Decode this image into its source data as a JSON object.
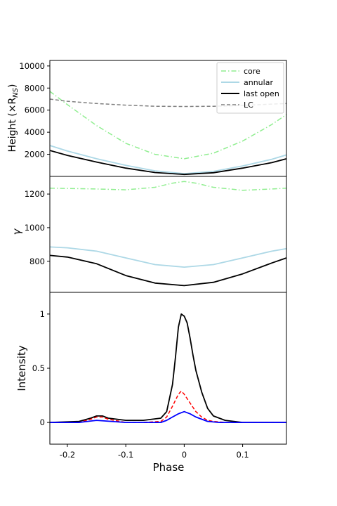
{
  "chart_data": [
    {
      "type": "line",
      "ylabel": "Height (×R",
      "ylabel_sub": "NS",
      "ylabel_tail": ")",
      "xlim": [
        -0.23,
        0.175
      ],
      "ylim": [
        0,
        10500
      ],
      "yticks": [
        2000,
        4000,
        6000,
        8000,
        10000
      ],
      "ytick_labels": [
        "2000",
        "4000",
        "6000",
        "8000",
        "10000"
      ],
      "legend_position": "upper-right",
      "series": [
        {
          "name": "core",
          "color": "#90ee90",
          "style": "dashdot",
          "x": [
            -0.23,
            -0.2,
            -0.15,
            -0.1,
            -0.05,
            0.0,
            0.05,
            0.1,
            0.15,
            0.175
          ],
          "y": [
            7700,
            6500,
            4600,
            3000,
            2000,
            1600,
            2100,
            3200,
            4700,
            5600
          ]
        },
        {
          "name": "annular",
          "color": "#add8e6",
          "style": "solid",
          "x": [
            -0.23,
            -0.2,
            -0.15,
            -0.1,
            -0.05,
            0.0,
            0.05,
            0.1,
            0.15,
            0.175
          ],
          "y": [
            2800,
            2300,
            1600,
            1000,
            500,
            250,
            450,
            950,
            1550,
            1950
          ]
        },
        {
          "name": "last open",
          "color": "#000000",
          "style": "solid",
          "x": [
            -0.23,
            -0.2,
            -0.15,
            -0.1,
            -0.05,
            0.0,
            0.05,
            0.1,
            0.15,
            0.175
          ],
          "y": [
            2350,
            1900,
            1300,
            750,
            350,
            180,
            330,
            750,
            1250,
            1600
          ]
        },
        {
          "name": "LC",
          "color": "#808080",
          "style": "dashed",
          "x": [
            -0.23,
            -0.2,
            -0.15,
            -0.1,
            -0.05,
            0.0,
            0.05,
            0.1,
            0.15,
            0.175
          ],
          "y": [
            7000,
            6800,
            6600,
            6450,
            6350,
            6330,
            6350,
            6420,
            6550,
            6600
          ]
        }
      ]
    },
    {
      "type": "line",
      "ylabel": "γ",
      "xlim": [
        -0.23,
        0.175
      ],
      "ylim": [
        615,
        1305
      ],
      "yticks": [
        800,
        1000,
        1200
      ],
      "ytick_labels": [
        "800",
        "1000",
        "1200"
      ],
      "series": [
        {
          "color": "#90ee90",
          "style": "dashdot",
          "x": [
            -0.23,
            -0.15,
            -0.1,
            -0.05,
            -0.02,
            0.0,
            0.02,
            0.05,
            0.1,
            0.15,
            0.175
          ],
          "y": [
            1235,
            1230,
            1225,
            1240,
            1265,
            1275,
            1265,
            1240,
            1222,
            1230,
            1235
          ]
        },
        {
          "color": "#add8e6",
          "style": "solid",
          "x": [
            -0.23,
            -0.2,
            -0.15,
            -0.1,
            -0.05,
            0.0,
            0.05,
            0.1,
            0.15,
            0.175
          ],
          "y": [
            885,
            880,
            860,
            820,
            780,
            765,
            780,
            820,
            860,
            875
          ]
        },
        {
          "color": "#000000",
          "style": "solid",
          "x": [
            -0.23,
            -0.2,
            -0.15,
            -0.1,
            -0.05,
            0.0,
            0.05,
            0.1,
            0.15,
            0.175
          ],
          "y": [
            835,
            825,
            785,
            715,
            670,
            655,
            675,
            725,
            790,
            820
          ]
        }
      ]
    },
    {
      "type": "line",
      "ylabel": "Intensity",
      "xlabel": "Phase",
      "xlim": [
        -0.23,
        0.175
      ],
      "ylim": [
        -0.2,
        1.2
      ],
      "yticks": [
        0,
        0.5,
        1
      ],
      "ytick_labels": [
        "0",
        "0.5",
        "1"
      ],
      "xticks": [
        -0.2,
        -0.1,
        0.0,
        0.1
      ],
      "xtick_labels": [
        "-0.2",
        "-0.1",
        "0",
        "0.1"
      ],
      "series": [
        {
          "color": "#000000",
          "style": "solid",
          "x": [
            -0.23,
            -0.18,
            -0.16,
            -0.15,
            -0.14,
            -0.13,
            -0.1,
            -0.07,
            -0.04,
            -0.03,
            -0.02,
            -0.015,
            -0.01,
            -0.005,
            0.0,
            0.005,
            0.01,
            0.015,
            0.02,
            0.03,
            0.04,
            0.05,
            0.07,
            0.1,
            0.13,
            0.175
          ],
          "y": [
            0.0,
            0.01,
            0.04,
            0.06,
            0.06,
            0.04,
            0.02,
            0.02,
            0.04,
            0.1,
            0.35,
            0.6,
            0.88,
            1.0,
            0.98,
            0.92,
            0.78,
            0.62,
            0.48,
            0.28,
            0.13,
            0.06,
            0.02,
            0.0,
            0.0,
            0.0
          ]
        },
        {
          "color": "#ff0000",
          "style": "dashed",
          "x": [
            -0.23,
            -0.18,
            -0.16,
            -0.15,
            -0.14,
            -0.13,
            -0.1,
            -0.07,
            -0.04,
            -0.03,
            -0.02,
            -0.01,
            -0.005,
            0.0,
            0.01,
            0.02,
            0.03,
            0.04,
            0.05,
            0.07,
            0.1,
            0.175
          ],
          "y": [
            0.0,
            0.0,
            0.03,
            0.05,
            0.05,
            0.03,
            0.0,
            0.0,
            0.01,
            0.05,
            0.15,
            0.26,
            0.29,
            0.26,
            0.18,
            0.1,
            0.05,
            0.02,
            0.01,
            0.0,
            0.0,
            0.0
          ]
        },
        {
          "color": "#0000ff",
          "style": "solid",
          "x": [
            -0.23,
            -0.18,
            -0.15,
            -0.1,
            -0.07,
            -0.04,
            -0.03,
            -0.02,
            -0.01,
            0.0,
            0.01,
            0.02,
            0.03,
            0.04,
            0.06,
            0.1,
            0.175
          ],
          "y": [
            0.0,
            0.0,
            0.02,
            0.0,
            0.0,
            0.0,
            0.02,
            0.05,
            0.08,
            0.1,
            0.08,
            0.05,
            0.03,
            0.01,
            0.0,
            0.0,
            0.0
          ]
        }
      ]
    }
  ]
}
